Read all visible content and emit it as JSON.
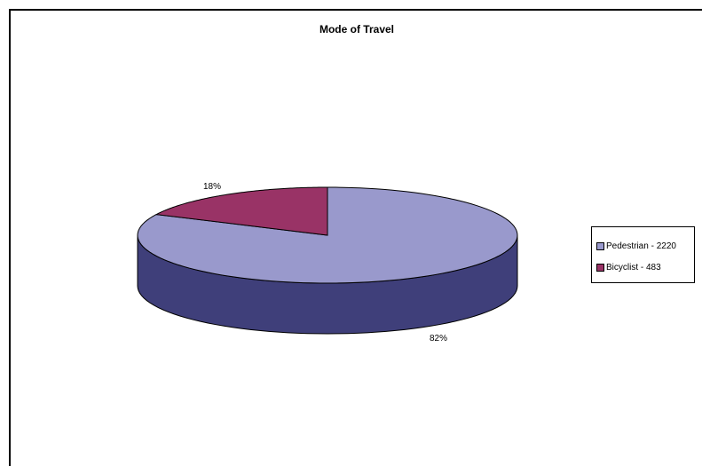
{
  "chart_data": {
    "type": "pie",
    "title": "Mode of Travel",
    "slices": [
      {
        "label": "Pedestrian - 2220",
        "value": 2220,
        "percent_label": "82%",
        "color": "#9999CC",
        "side_color": "#3F3F7A"
      },
      {
        "label": "Bicyclist - 483",
        "value": 483,
        "percent_label": "18%",
        "color": "#993366",
        "side_color": "#5C1F3D"
      }
    ],
    "legend_position": "right",
    "three_d": true
  }
}
